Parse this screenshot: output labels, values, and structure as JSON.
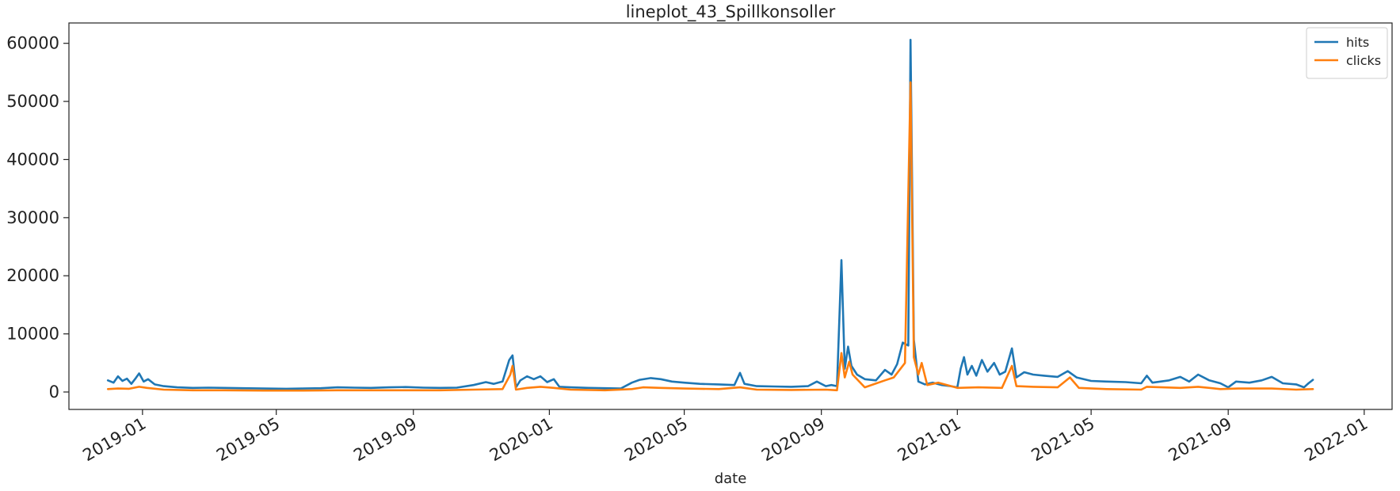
{
  "chart_data": {
    "type": "line",
    "title": "lineplot_43_Spillkonsoller",
    "xlabel": "date",
    "ylabel": "",
    "xlim": [
      "2018-10-27",
      "2022-01-26"
    ],
    "ylim": [
      -3000,
      63500
    ],
    "x_ticks": [
      "2019-01",
      "2019-05",
      "2019-09",
      "2020-01",
      "2020-05",
      "2020-09",
      "2021-01",
      "2021-05",
      "2021-09",
      "2022-01"
    ],
    "y_ticks": [
      0,
      10000,
      20000,
      30000,
      40000,
      50000,
      60000
    ],
    "legend": "top-right",
    "grid": false,
    "series": [
      {
        "name": "hits",
        "color": "#1f77b4",
        "points": [
          [
            "2018-12-01",
            2000
          ],
          [
            "2018-12-06",
            1600
          ],
          [
            "2018-12-10",
            2700
          ],
          [
            "2018-12-14",
            1900
          ],
          [
            "2018-12-18",
            2300
          ],
          [
            "2018-12-22",
            1400
          ],
          [
            "2018-12-26",
            2400
          ],
          [
            "2018-12-29",
            3200
          ],
          [
            "2019-01-02",
            1800
          ],
          [
            "2019-01-06",
            2200
          ],
          [
            "2019-01-12",
            1300
          ],
          [
            "2019-01-20",
            1000
          ],
          [
            "2019-02-01",
            800
          ],
          [
            "2019-02-15",
            700
          ],
          [
            "2019-03-01",
            750
          ],
          [
            "2019-03-15",
            700
          ],
          [
            "2019-04-01",
            650
          ],
          [
            "2019-04-20",
            600
          ],
          [
            "2019-05-10",
            550
          ],
          [
            "2019-05-25",
            600
          ],
          [
            "2019-06-10",
            650
          ],
          [
            "2019-06-25",
            800
          ],
          [
            "2019-07-10",
            750
          ],
          [
            "2019-07-25",
            700
          ],
          [
            "2019-08-10",
            800
          ],
          [
            "2019-08-25",
            850
          ],
          [
            "2019-09-10",
            750
          ],
          [
            "2019-09-25",
            700
          ],
          [
            "2019-10-10",
            750
          ],
          [
            "2019-10-25",
            1200
          ],
          [
            "2019-11-05",
            1700
          ],
          [
            "2019-11-12",
            1400
          ],
          [
            "2019-11-20",
            1800
          ],
          [
            "2019-11-26",
            5500
          ],
          [
            "2019-11-29",
            6300
          ],
          [
            "2019-12-02",
            800
          ],
          [
            "2019-12-06",
            2000
          ],
          [
            "2019-12-12",
            2700
          ],
          [
            "2019-12-18",
            2200
          ],
          [
            "2019-12-24",
            2700
          ],
          [
            "2019-12-30",
            1700
          ],
          [
            "2020-01-05",
            2200
          ],
          [
            "2020-01-10",
            900
          ],
          [
            "2020-01-20",
            800
          ],
          [
            "2020-02-05",
            700
          ],
          [
            "2020-02-20",
            650
          ],
          [
            "2020-03-05",
            600
          ],
          [
            "2020-03-15",
            1600
          ],
          [
            "2020-03-22",
            2100
          ],
          [
            "2020-04-01",
            2400
          ],
          [
            "2020-04-10",
            2200
          ],
          [
            "2020-04-20",
            1800
          ],
          [
            "2020-05-01",
            1600
          ],
          [
            "2020-05-15",
            1400
          ],
          [
            "2020-06-01",
            1300
          ],
          [
            "2020-06-15",
            1200
          ],
          [
            "2020-06-20",
            3300
          ],
          [
            "2020-06-24",
            1400
          ],
          [
            "2020-07-05",
            1000
          ],
          [
            "2020-07-20",
            950
          ],
          [
            "2020-08-05",
            900
          ],
          [
            "2020-08-20",
            1000
          ],
          [
            "2020-08-28",
            1800
          ],
          [
            "2020-09-05",
            1000
          ],
          [
            "2020-09-10",
            1200
          ],
          [
            "2020-09-15",
            1000
          ],
          [
            "2020-09-19",
            22700
          ],
          [
            "2020-09-22",
            4000
          ],
          [
            "2020-09-25",
            7800
          ],
          [
            "2020-09-28",
            4500
          ],
          [
            "2020-10-03",
            3000
          ],
          [
            "2020-10-10",
            2200
          ],
          [
            "2020-10-20",
            2000
          ],
          [
            "2020-10-28",
            3800
          ],
          [
            "2020-11-03",
            3000
          ],
          [
            "2020-11-08",
            4800
          ],
          [
            "2020-11-13",
            8500
          ],
          [
            "2020-11-18",
            8000
          ],
          [
            "2020-11-20",
            60600
          ],
          [
            "2020-11-23",
            9000
          ],
          [
            "2020-11-27",
            1800
          ],
          [
            "2020-12-03",
            1300
          ],
          [
            "2020-12-10",
            1600
          ],
          [
            "2020-12-18",
            1200
          ],
          [
            "2020-12-26",
            1000
          ],
          [
            "2021-01-01",
            800
          ],
          [
            "2021-01-04",
            4000
          ],
          [
            "2021-01-07",
            6000
          ],
          [
            "2021-01-10",
            3000
          ],
          [
            "2021-01-14",
            4500
          ],
          [
            "2021-01-18",
            2800
          ],
          [
            "2021-01-23",
            5500
          ],
          [
            "2021-01-28",
            3500
          ],
          [
            "2021-02-03",
            5000
          ],
          [
            "2021-02-08",
            3000
          ],
          [
            "2021-02-13",
            3500
          ],
          [
            "2021-02-19",
            7500
          ],
          [
            "2021-02-23",
            2500
          ],
          [
            "2021-03-02",
            3400
          ],
          [
            "2021-03-10",
            3000
          ],
          [
            "2021-03-20",
            2800
          ],
          [
            "2021-04-01",
            2600
          ],
          [
            "2021-04-10",
            3600
          ],
          [
            "2021-04-18",
            2500
          ],
          [
            "2021-05-01",
            1900
          ],
          [
            "2021-05-15",
            1800
          ],
          [
            "2021-06-01",
            1700
          ],
          [
            "2021-06-15",
            1500
          ],
          [
            "2021-06-20",
            2800
          ],
          [
            "2021-06-25",
            1600
          ],
          [
            "2021-07-10",
            2000
          ],
          [
            "2021-07-20",
            2600
          ],
          [
            "2021-07-28",
            1800
          ],
          [
            "2021-08-05",
            3000
          ],
          [
            "2021-08-15",
            2000
          ],
          [
            "2021-08-25",
            1500
          ],
          [
            "2021-09-01",
            800
          ],
          [
            "2021-09-08",
            1800
          ],
          [
            "2021-09-20",
            1600
          ],
          [
            "2021-10-01",
            2000
          ],
          [
            "2021-10-10",
            2600
          ],
          [
            "2021-10-20",
            1500
          ],
          [
            "2021-11-01",
            1300
          ],
          [
            "2021-11-08",
            800
          ],
          [
            "2021-11-12",
            1500
          ],
          [
            "2021-11-16",
            2100
          ]
        ]
      },
      {
        "name": "clicks",
        "color": "#ff7f0e",
        "points": [
          [
            "2018-12-01",
            500
          ],
          [
            "2018-12-10",
            600
          ],
          [
            "2018-12-20",
            550
          ],
          [
            "2018-12-29",
            900
          ],
          [
            "2019-01-05",
            700
          ],
          [
            "2019-01-20",
            400
          ],
          [
            "2019-02-15",
            300
          ],
          [
            "2019-03-15",
            300
          ],
          [
            "2019-04-20",
            250
          ],
          [
            "2019-05-25",
            250
          ],
          [
            "2019-06-25",
            300
          ],
          [
            "2019-07-25",
            300
          ],
          [
            "2019-08-25",
            300
          ],
          [
            "2019-09-25",
            300
          ],
          [
            "2019-10-25",
            400
          ],
          [
            "2019-11-20",
            500
          ],
          [
            "2019-11-27",
            3000
          ],
          [
            "2019-11-29",
            4500
          ],
          [
            "2019-12-02",
            400
          ],
          [
            "2019-12-12",
            700
          ],
          [
            "2019-12-24",
            900
          ],
          [
            "2020-01-05",
            700
          ],
          [
            "2020-01-20",
            400
          ],
          [
            "2020-02-20",
            300
          ],
          [
            "2020-03-15",
            500
          ],
          [
            "2020-03-25",
            800
          ],
          [
            "2020-04-10",
            700
          ],
          [
            "2020-05-01",
            600
          ],
          [
            "2020-06-01",
            500
          ],
          [
            "2020-06-20",
            800
          ],
          [
            "2020-07-05",
            400
          ],
          [
            "2020-08-05",
            350
          ],
          [
            "2020-09-05",
            400
          ],
          [
            "2020-09-15",
            300
          ],
          [
            "2020-09-19",
            6700
          ],
          [
            "2020-09-22",
            2500
          ],
          [
            "2020-09-26",
            5200
          ],
          [
            "2020-09-29",
            3000
          ],
          [
            "2020-10-10",
            800
          ],
          [
            "2020-10-28",
            2000
          ],
          [
            "2020-11-05",
            2500
          ],
          [
            "2020-11-15",
            5000
          ],
          [
            "2020-11-20",
            53300
          ],
          [
            "2020-11-23",
            6000
          ],
          [
            "2020-11-27",
            3000
          ],
          [
            "2020-11-30",
            5000
          ],
          [
            "2020-12-05",
            1200
          ],
          [
            "2020-12-15",
            1600
          ],
          [
            "2021-01-01",
            700
          ],
          [
            "2021-01-20",
            800
          ],
          [
            "2021-02-10",
            700
          ],
          [
            "2021-02-19",
            4500
          ],
          [
            "2021-02-23",
            1000
          ],
          [
            "2021-03-10",
            900
          ],
          [
            "2021-04-01",
            800
          ],
          [
            "2021-04-12",
            2500
          ],
          [
            "2021-04-20",
            700
          ],
          [
            "2021-05-15",
            500
          ],
          [
            "2021-06-15",
            400
          ],
          [
            "2021-06-20",
            900
          ],
          [
            "2021-07-20",
            700
          ],
          [
            "2021-08-05",
            900
          ],
          [
            "2021-08-25",
            500
          ],
          [
            "2021-09-10",
            600
          ],
          [
            "2021-10-10",
            600
          ],
          [
            "2021-11-01",
            400
          ],
          [
            "2021-11-16",
            500
          ]
        ]
      }
    ]
  }
}
